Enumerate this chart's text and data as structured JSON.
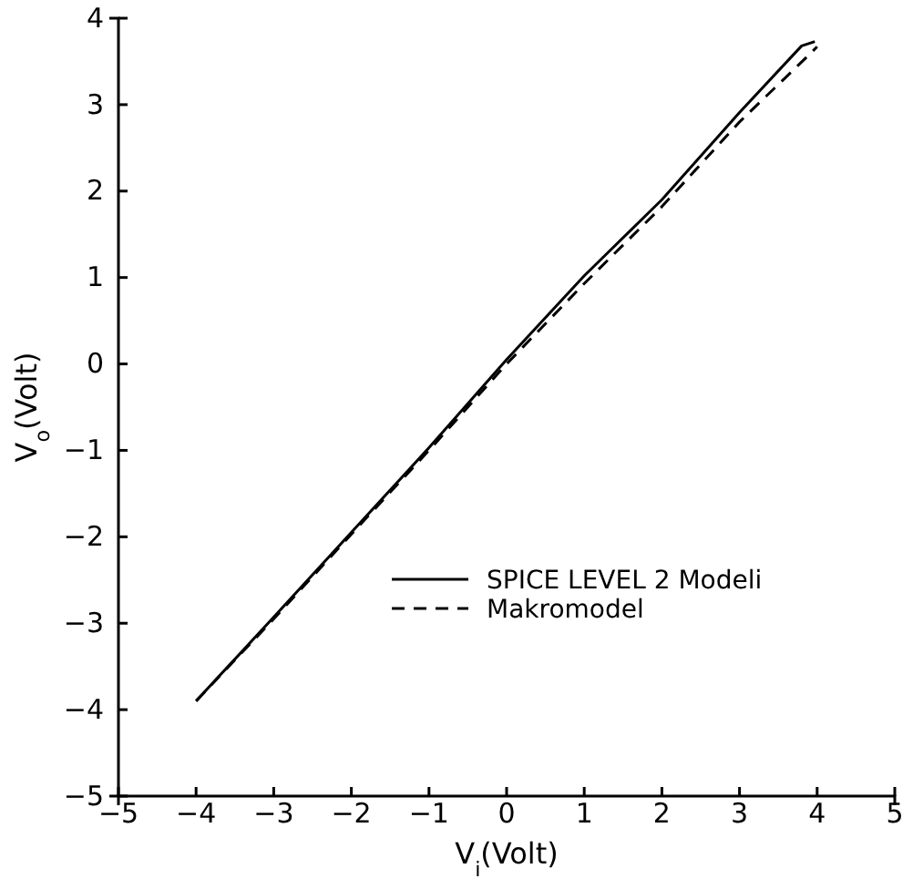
{
  "chart_data": {
    "type": "line",
    "xlabel": "V$_{i}$(Volt)",
    "ylabel": "V$_{o}$(Volt)",
    "xlim": [
      -5,
      5
    ],
    "xticks": [
      -5,
      -4,
      -3,
      -2,
      -1,
      0,
      1,
      2,
      3,
      4,
      5
    ],
    "ylim": [
      -5,
      4
    ],
    "yticks": [
      -5,
      -4,
      -3,
      -2,
      -1,
      0,
      1,
      2,
      3,
      4
    ],
    "grid": false,
    "legend": "bottom right",
    "marker": "none",
    "series": [
      {
        "name": "SPICE LEVEL 2 Modeli",
        "color": "#000000",
        "line_style": "solid",
        "x": [
          -4,
          -3,
          -2,
          -1,
          0,
          1,
          2,
          3,
          3.8,
          3.97
        ],
        "values": [
          -3.9,
          -2.93,
          -1.95,
          -0.97,
          0.05,
          1.02,
          1.9,
          2.91,
          3.68,
          3.73
        ]
      },
      {
        "name": "Makromodel",
        "color": "#000000",
        "line_style": "dashed",
        "x": [
          -4,
          -3,
          -2,
          -1,
          0,
          1,
          2,
          3,
          3.9,
          4
        ],
        "values": [
          -3.9,
          -2.95,
          -1.97,
          -1,
          0,
          0.93,
          1.82,
          2.8,
          3.58,
          3.67
        ]
      }
    ]
  }
}
